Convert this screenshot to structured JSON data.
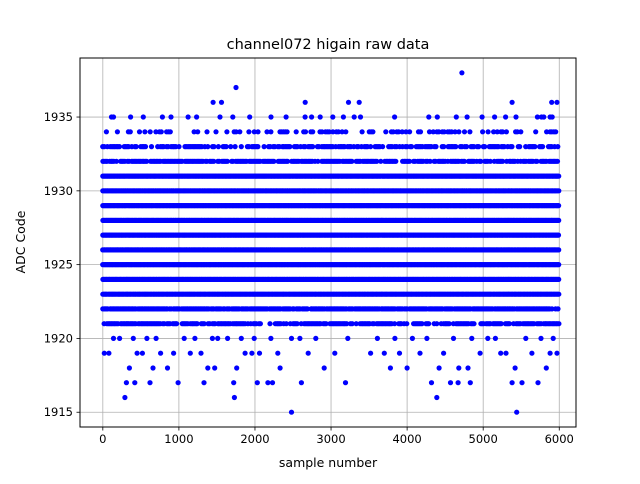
{
  "chart_data": {
    "type": "scatter",
    "title": "channel072 higain raw data",
    "xlabel": "sample number",
    "ylabel": "ADC Code",
    "xlim": [
      -300,
      6220
    ],
    "ylim": [
      1914,
      1939
    ],
    "xticks": [
      0,
      1000,
      2000,
      3000,
      4000,
      5000,
      6000
    ],
    "yticks": [
      1915,
      1920,
      1925,
      1930,
      1935
    ],
    "grid": true,
    "marker_color": "#0000ff",
    "n_samples": 6000,
    "levels": [
      {
        "y": 1915,
        "x": [
          2480,
          5440
        ]
      },
      {
        "y": 1916,
        "x": [
          290,
          1730,
          4390
        ]
      },
      {
        "y": 1917,
        "x": [
          310,
          420,
          620,
          990,
          1330,
          1720,
          2030,
          2170,
          2230,
          2610,
          3190,
          4320,
          4570,
          4670,
          4830,
          5380,
          5510,
          5720
        ]
      },
      {
        "y": 1918,
        "x": [
          350,
          660,
          850,
          1380,
          1470,
          1760,
          2330,
          2910,
          3780,
          4000,
          4420,
          4680,
          4800,
          5420,
          5830
        ]
      },
      {
        "y": 1919,
        "x": [
          20,
          80,
          450,
          520,
          760,
          930,
          1150,
          1290,
          1870,
          1960,
          2060,
          2300,
          2700,
          3050,
          3520,
          3700,
          3900,
          4170,
          4480,
          4960,
          5230,
          5300,
          5640,
          5880,
          5970
        ]
      },
      {
        "y": 1920,
        "x": [
          140,
          220,
          400,
          580,
          700,
          1070,
          1210,
          1440,
          1510,
          1640,
          1820,
          1990,
          2210,
          2480,
          2590,
          2800,
          3220,
          3610,
          3840,
          4070,
          4260,
          4610,
          4850,
          5060,
          5160,
          5560,
          5760,
          5920
        ]
      },
      {
        "y": 1936,
        "x": [
          1450,
          1560,
          2660,
          3230,
          3370,
          5380,
          5900,
          5970
        ]
      },
      {
        "y": 1937,
        "x": [
          1750
        ]
      },
      {
        "y": 1938,
        "x": [
          4720
        ]
      }
    ],
    "dense_band": {
      "y_from": 1921,
      "y_to": 1935,
      "x_from": 0,
      "x_to": 5999
    },
    "sparse_top_levels": [
      1932,
      1933,
      1934,
      1935
    ]
  }
}
